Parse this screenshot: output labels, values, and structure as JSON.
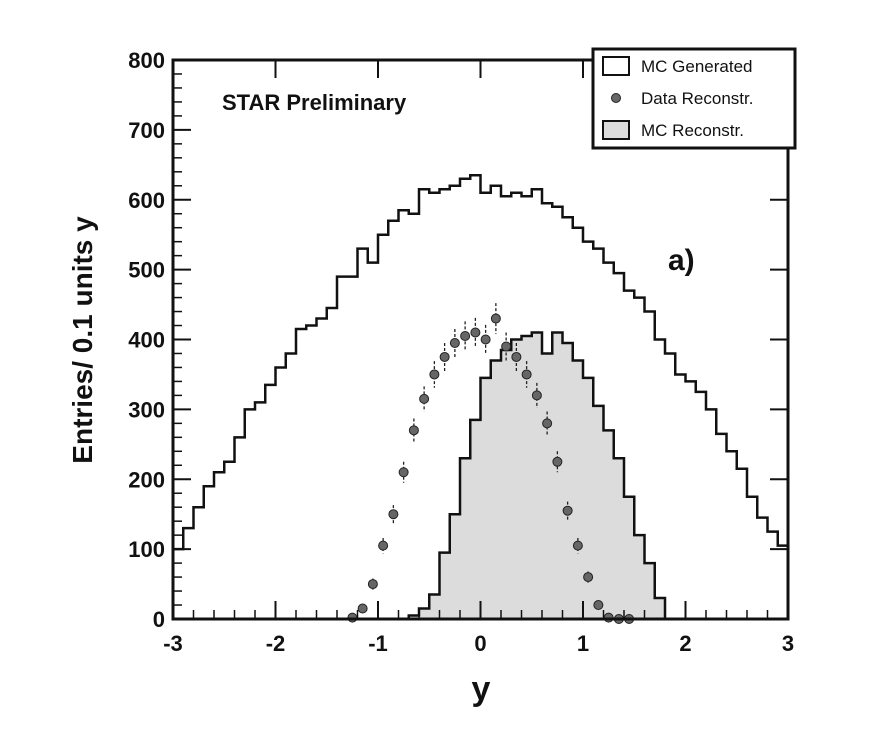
{
  "chart_data": {
    "type": "histogram",
    "annotation": "STAR Preliminary",
    "panel_label": "a)",
    "xlabel": "y",
    "ylabel": "Entries/ 0.1 units y",
    "xlim": [
      -3,
      3
    ],
    "ylim": [
      0,
      800
    ],
    "x_ticks": [
      "-3",
      "-2",
      "-1",
      "0",
      "1",
      "2",
      "3"
    ],
    "y_ticks": [
      "0",
      "100",
      "200",
      "300",
      "400",
      "500",
      "600",
      "700",
      "800"
    ],
    "bin_width": 0.1,
    "bin_edges_start": -3.0,
    "legend": {
      "position": "top-right",
      "entries": [
        "MC Generated",
        "Data Reconstr.",
        "MC Reconstr."
      ]
    },
    "series": [
      {
        "name": "MC Generated",
        "style": "step-outline",
        "values": [
          100,
          130,
          160,
          190,
          210,
          225,
          260,
          300,
          310,
          335,
          360,
          380,
          415,
          420,
          430,
          445,
          490,
          490,
          530,
          510,
          550,
          570,
          585,
          580,
          615,
          610,
          615,
          620,
          630,
          635,
          610,
          620,
          605,
          610,
          605,
          615,
          595,
          590,
          575,
          560,
          540,
          530,
          510,
          495,
          470,
          460,
          440,
          400,
          380,
          350,
          340,
          325,
          300,
          265,
          240,
          215,
          175,
          145,
          125,
          105
        ]
      },
      {
        "name": "MC Reconstr.",
        "style": "filled-step",
        "color": "#dcdcdc",
        "values": [
          0,
          0,
          0,
          0,
          0,
          0,
          0,
          0,
          0,
          0,
          0,
          0,
          0,
          0,
          0,
          0,
          0,
          0,
          0,
          0,
          0,
          0,
          0,
          5,
          15,
          35,
          95,
          150,
          230,
          285,
          345,
          370,
          385,
          400,
          405,
          410,
          380,
          410,
          395,
          370,
          345,
          305,
          270,
          230,
          175,
          120,
          80,
          30,
          0,
          0,
          0,
          0,
          0,
          0,
          0,
          0,
          0,
          0,
          0,
          0
        ]
      },
      {
        "name": "Data Reconstr.",
        "style": "markers-errorbars",
        "color": "#666666",
        "x": [
          -1.25,
          -1.15,
          -1.05,
          -0.95,
          -0.85,
          -0.75,
          -0.65,
          -0.55,
          -0.45,
          -0.35,
          -0.25,
          -0.15,
          -0.05,
          0.05,
          0.15,
          0.25,
          0.35,
          0.45,
          0.55,
          0.65,
          0.75,
          0.85,
          0.95,
          1.05,
          1.15,
          1.25,
          1.35,
          1.45
        ],
        "values": [
          2,
          15,
          50,
          105,
          150,
          210,
          270,
          315,
          350,
          375,
          395,
          405,
          410,
          400,
          430,
          390,
          375,
          350,
          320,
          280,
          225,
          155,
          105,
          60,
          20,
          2,
          0,
          0
        ],
        "errors": [
          3,
          5,
          8,
          11,
          13,
          15,
          17,
          18,
          19,
          20,
          20,
          21,
          21,
          21,
          22,
          20,
          20,
          19,
          18,
          17,
          15,
          13,
          11,
          8,
          5,
          3,
          2,
          2
        ]
      }
    ]
  }
}
